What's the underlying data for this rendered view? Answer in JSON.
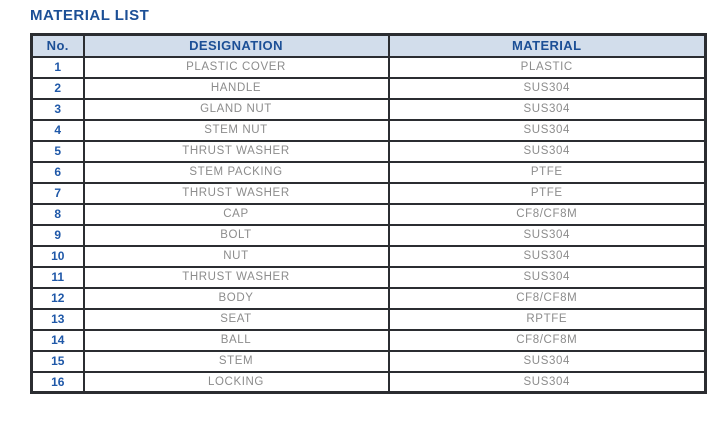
{
  "title": "MATERIAL LIST",
  "colors": {
    "background": "#ffffff",
    "title_blue": "#1c4f96",
    "header_bg": "#d2ddeb",
    "header_text": "#1c4f96",
    "number_text": "#1f58a8",
    "cell_text": "#8c8c8c",
    "border": "#2b2d31"
  },
  "table": {
    "headers": [
      "No.",
      "DESIGNATION",
      "MATERIAL"
    ],
    "rows": [
      {
        "no": "1",
        "designation": "PLASTIC COVER",
        "material": "PLASTIC"
      },
      {
        "no": "2",
        "designation": "HANDLE",
        "material": "SUS304"
      },
      {
        "no": "3",
        "designation": "GLAND NUT",
        "material": "SUS304"
      },
      {
        "no": "4",
        "designation": "STEM NUT",
        "material": "SUS304"
      },
      {
        "no": "5",
        "designation": "THRUST WASHER",
        "material": "SUS304"
      },
      {
        "no": "6",
        "designation": "STEM PACKING",
        "material": "PTFE"
      },
      {
        "no": "7",
        "designation": "THRUST WASHER",
        "material": "PTFE"
      },
      {
        "no": "8",
        "designation": "CAP",
        "material": "CF8/CF8M"
      },
      {
        "no": "9",
        "designation": "BOLT",
        "material": "SUS304"
      },
      {
        "no": "10",
        "designation": "NUT",
        "material": "SUS304"
      },
      {
        "no": "11",
        "designation": "THRUST WASHER",
        "material": "SUS304"
      },
      {
        "no": "12",
        "designation": "BODY",
        "material": "CF8/CF8M"
      },
      {
        "no": "13",
        "designation": "SEAT",
        "material": "RPTFE"
      },
      {
        "no": "14",
        "designation": "BALL",
        "material": "CF8/CF8M"
      },
      {
        "no": "15",
        "designation": "STEM",
        "material": "SUS304"
      },
      {
        "no": "16",
        "designation": "LOCKING",
        "material": "SUS304"
      }
    ]
  }
}
